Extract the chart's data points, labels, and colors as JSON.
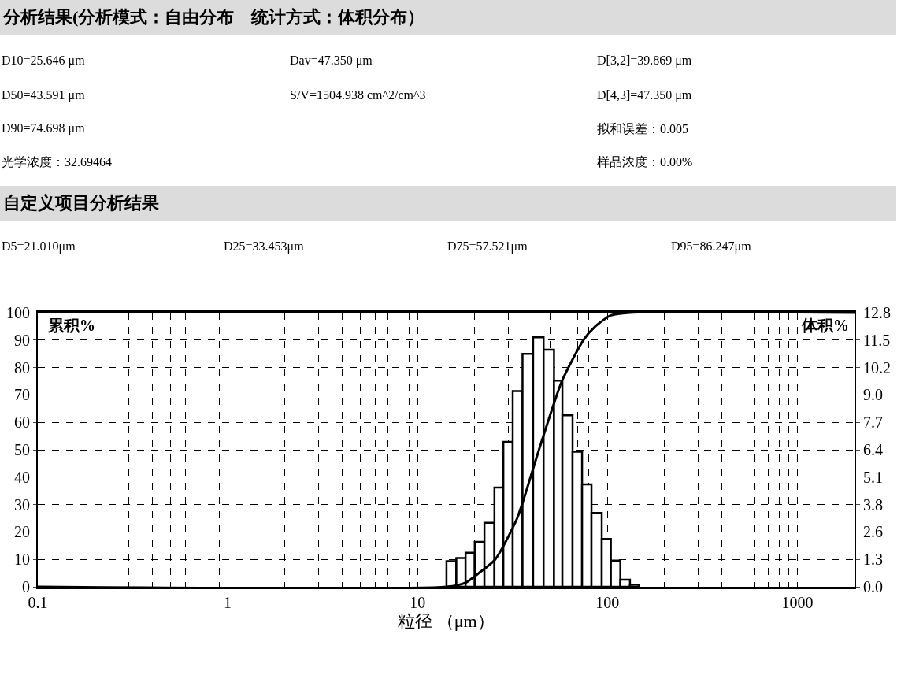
{
  "chart_data": {
    "type": "histogram",
    "title": "分析结果(分析模式：自由分布　统计方式：体积分布）",
    "subtitle": "自定义项目分析结果",
    "annotations": [
      "D10=25.646 μm",
      "Dav=47.350 μm",
      "D[3,2]=39.869 μm",
      "D50=43.591 μm",
      "S/V=1504.938 cm^2/cm^3",
      "D[4,3]=47.350 μm",
      "D90=74.698 μm",
      "拟和误差：0.005",
      "光学浓度：32.69464",
      "样品浓度：0.00%",
      "D5=21.010μm",
      "D25=33.453μm",
      "D75=57.521μm",
      "D95=86.247μm"
    ],
    "xlabel": "粒径 （μm）",
    "ylabel": "累积%",
    "y2label": "体积%",
    "log": "x",
    "xlim": [
      0.1,
      2000
    ],
    "xticks": [
      0.1,
      {
        "value": 0.2,
        "label": null
      },
      {
        "value": 0.3,
        "label": null
      },
      {
        "value": 0.4,
        "label": null
      },
      {
        "value": 0.5,
        "label": null
      },
      {
        "value": 0.6,
        "label": null
      },
      {
        "value": 0.7,
        "label": null
      },
      {
        "value": 0.8,
        "label": null
      },
      {
        "value": 0.9,
        "label": null
      },
      1,
      {
        "value": 2,
        "label": null
      },
      {
        "value": 3,
        "label": null
      },
      {
        "value": 4,
        "label": null
      },
      {
        "value": 5,
        "label": null
      },
      {
        "value": 6,
        "label": null
      },
      {
        "value": 7,
        "label": null
      },
      {
        "value": 8,
        "label": null
      },
      {
        "value": 9,
        "label": null
      },
      10,
      {
        "value": 20,
        "label": null
      },
      {
        "value": 30,
        "label": null
      },
      {
        "value": 40,
        "label": null
      },
      {
        "value": 50,
        "label": null
      },
      {
        "value": 60,
        "label": null
      },
      {
        "value": 70,
        "label": null
      },
      {
        "value": 80,
        "label": null
      },
      {
        "value": 90,
        "label": null
      },
      100,
      {
        "value": 200,
        "label": null
      },
      {
        "value": 300,
        "label": null
      },
      {
        "value": 400,
        "label": null
      },
      {
        "value": 500,
        "label": null
      },
      {
        "value": 600,
        "label": null
      },
      {
        "value": 700,
        "label": null
      },
      {
        "value": 800,
        "label": null
      },
      {
        "value": 900,
        "label": null
      },
      1000
    ],
    "ylim": [
      0,
      100
    ],
    "yticks": [
      0,
      10,
      20,
      30,
      40,
      50,
      60,
      70,
      80,
      90,
      100
    ],
    "y2lim": [
      0,
      12.8
    ],
    "y2ticks": [
      {
        "value": 0,
        "label": "0.0"
      },
      {
        "value": 1.28,
        "label": "1.3"
      },
      {
        "value": 2.56,
        "label": "2.6"
      },
      {
        "value": 3.84,
        "label": "3.8"
      },
      {
        "value": 5.12,
        "label": "5.1"
      },
      {
        "value": 6.4,
        "label": "6.4"
      },
      {
        "value": 7.68,
        "label": "7.7"
      },
      {
        "value": 8.96,
        "label": "9.0"
      },
      {
        "value": 10.24,
        "label": "10.2"
      },
      {
        "value": 11.52,
        "label": "11.5"
      },
      12.8
    ],
    "grid": true,
    "series": [
      {
        "axis": "y2",
        "color": "#ffffff",
        "bins": [
          14.2,
          16.0,
          17.9,
          20.0,
          22.5,
          25.4,
          28.3,
          31.7,
          35.7,
          40.6,
          46.1,
          52.3,
          57.9,
          65.5,
          73.5,
          82.4,
          93.3,
          104.2,
          116.9,
          131.4,
          146.9
        ],
        "values": [
          1.2,
          1.34,
          1.59,
          2.1,
          2.99,
          4.63,
          6.77,
          9.14,
          10.88,
          11.65,
          11.07,
          9.63,
          8.01,
          6.31,
          4.78,
          3.45,
          2.23,
          1.22,
          0.33,
          0.1
        ]
      },
      {
        "type": "line",
        "axis": "y",
        "color": "#000000",
        "line_style": "solid",
        "x": [
          0.1,
          14.2,
          17.9,
          21.01,
          25.646,
          33.453,
          43.591,
          57.521,
          74.698,
          86.247,
          104,
          131,
          2000
        ],
        "values": [
          0,
          0,
          1.5,
          5,
          10,
          25,
          50,
          75,
          90,
          95,
          99,
          100,
          100
        ]
      }
    ]
  }
}
